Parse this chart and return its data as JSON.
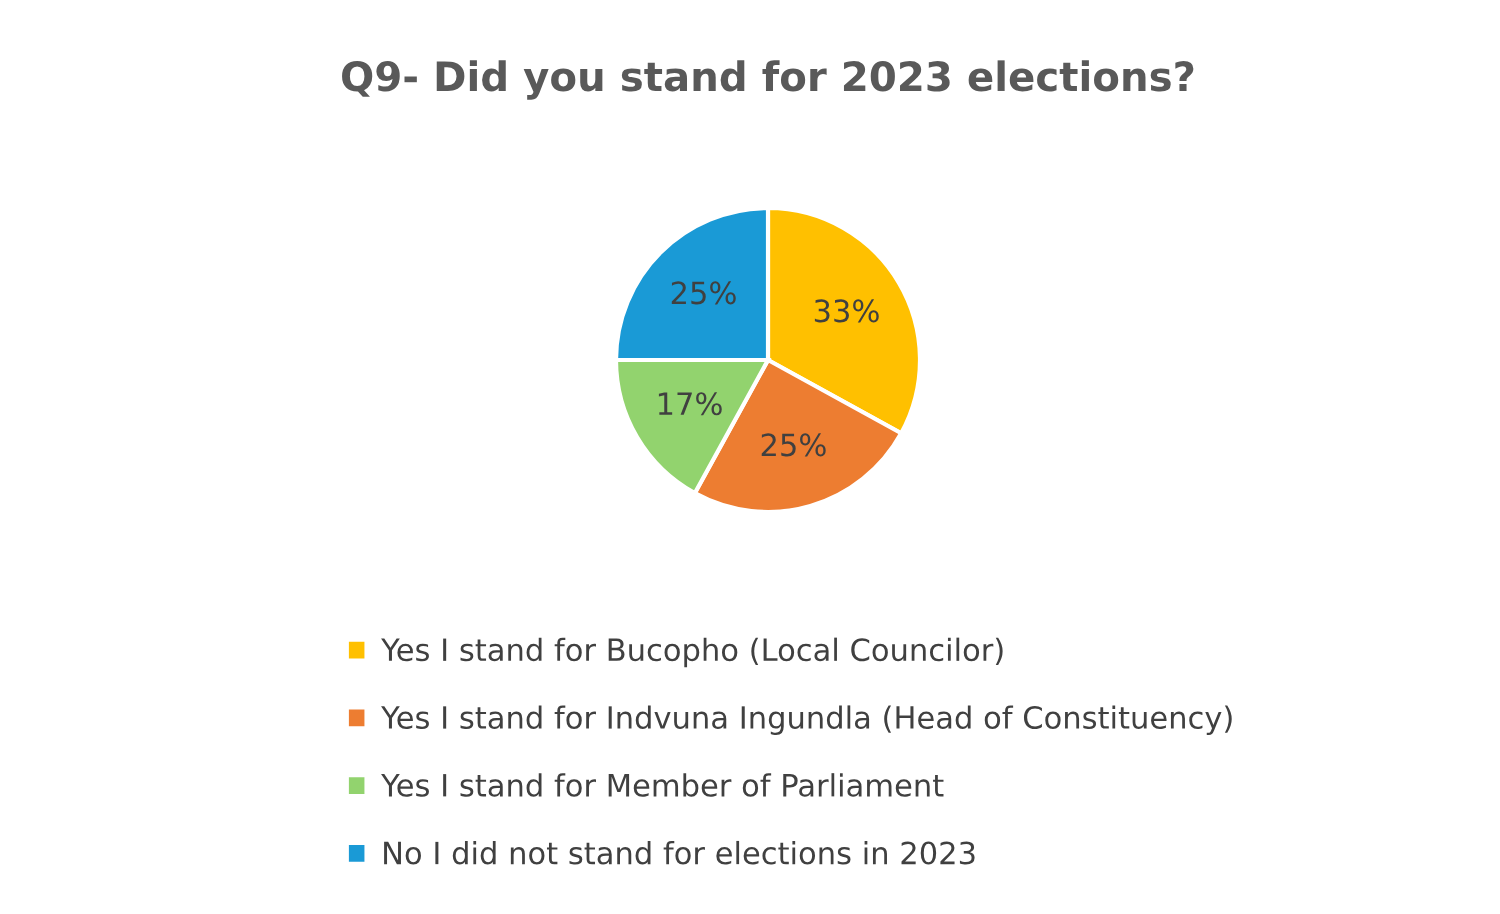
{
  "chart_data": {
    "type": "pie",
    "title": "Q9- Did you stand for 2023 elections?",
    "categories": [
      "Yes I stand for Bucopho (Local Councilor)",
      "Yes I stand for Indvuna Ingundla (Head of Constituency)",
      "Yes I stand for Member of Parliament",
      "No I did not stand for elections in 2023"
    ],
    "values": [
      33,
      25,
      17,
      25
    ],
    "value_labels": [
      "33%",
      "25%",
      "17%",
      "25%"
    ],
    "colors": [
      "#ffc000",
      "#ed7d31",
      "#92d36e",
      "#1a9ad6"
    ],
    "legend": "bottom"
  }
}
